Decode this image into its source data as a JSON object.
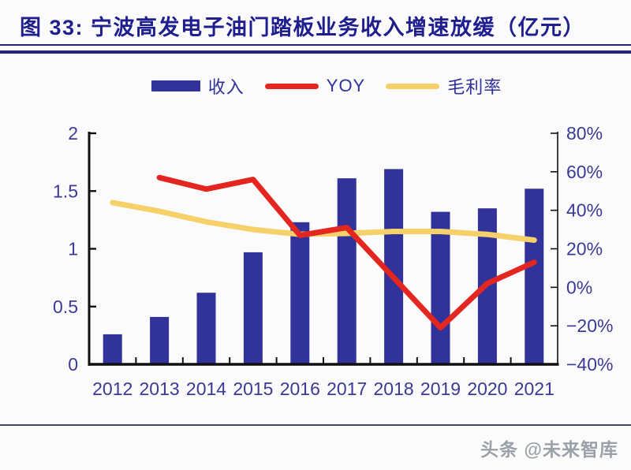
{
  "header": {
    "title": "图 33: 宁波高发电子油门踏板业务收入增速放缓（亿元）"
  },
  "legend": {
    "items": [
      {
        "label": "收入",
        "color": "#32329B",
        "type": "bar"
      },
      {
        "label": "YOY",
        "color": "#E3261F",
        "type": "line"
      },
      {
        "label": "毛利率",
        "color": "#F6D169",
        "type": "line"
      }
    ]
  },
  "watermark": "头条 @未来智库",
  "chart_data": {
    "type": "combo-bar-line",
    "title": "图 33: 宁波高发电子油门踏板业务收入增速放缓（亿元）",
    "categories": [
      "2012",
      "2013",
      "2014",
      "2015",
      "2016",
      "2017",
      "2018",
      "2019",
      "2020",
      "2021"
    ],
    "series": [
      {
        "name": "收入",
        "chart": "bar",
        "axis": "left",
        "color": "#32329B",
        "unit": "亿元",
        "values": [
          0.26,
          0.41,
          0.62,
          0.97,
          1.23,
          1.61,
          1.69,
          1.32,
          1.35,
          1.52
        ]
      },
      {
        "name": "YOY",
        "chart": "line",
        "axis": "right",
        "color": "#E3261F",
        "unit": "%",
        "values": [
          null,
          57,
          51,
          56,
          27,
          31,
          5,
          -21,
          2,
          13
        ]
      },
      {
        "name": "毛利率",
        "chart": "line",
        "axis": "right",
        "color": "#F6D169",
        "unit": "%",
        "values": [
          44,
          39.5,
          34,
          30,
          27.5,
          28,
          29,
          29,
          27.5,
          24.5
        ]
      }
    ],
    "left_axis": {
      "min": 0,
      "max": 2,
      "tick_values": [
        0,
        0.5,
        1,
        1.5,
        2
      ],
      "tick_labels": [
        "0",
        "0.5",
        "1",
        "1.5",
        "2"
      ]
    },
    "right_axis": {
      "min": -40,
      "max": 80,
      "tick_values": [
        -40,
        -20,
        0,
        20,
        40,
        60,
        80
      ],
      "tick_labels": [
        "−40%",
        "−20%",
        "0%",
        "20%",
        "40%",
        "60%",
        "80%"
      ]
    },
    "legend_position": "top",
    "grid": false
  }
}
